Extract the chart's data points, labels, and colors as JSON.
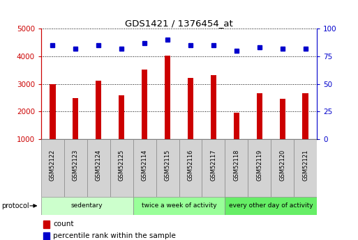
{
  "title": "GDS1421 / 1376454_at",
  "samples": [
    "GSM52122",
    "GSM52123",
    "GSM52124",
    "GSM52125",
    "GSM52114",
    "GSM52115",
    "GSM52116",
    "GSM52117",
    "GSM52118",
    "GSM52119",
    "GSM52120",
    "GSM52121"
  ],
  "counts": [
    3000,
    2480,
    3130,
    2600,
    3520,
    4020,
    3230,
    3310,
    1950,
    2660,
    2460,
    2670
  ],
  "percentiles": [
    85,
    82,
    85,
    82,
    87,
    90,
    85,
    85,
    80,
    83,
    82,
    82
  ],
  "ylim_left": [
    1000,
    5000
  ],
  "ylim_right": [
    0,
    100
  ],
  "yticks_left": [
    1000,
    2000,
    3000,
    4000,
    5000
  ],
  "yticks_right": [
    0,
    25,
    50,
    75,
    100
  ],
  "bar_color": "#cc0000",
  "dot_color": "#0000cc",
  "groups": [
    {
      "label": "sedentary",
      "start": 0,
      "end": 4,
      "color": "#ccffcc"
    },
    {
      "label": "twice a week of activity",
      "start": 4,
      "end": 8,
      "color": "#99ff99"
    },
    {
      "label": "every other day of activity",
      "start": 8,
      "end": 12,
      "color": "#66ee66"
    }
  ],
  "protocol_label": "protocol",
  "legend_count_label": "count",
  "legend_pct_label": "percentile rank within the sample",
  "bar_color_hex": "#cc0000",
  "dot_color_hex": "#0000cc",
  "left_axis_color": "#cc0000",
  "right_axis_color": "#0000cc",
  "grid_color": "#000000",
  "cell_color": "#d3d3d3"
}
